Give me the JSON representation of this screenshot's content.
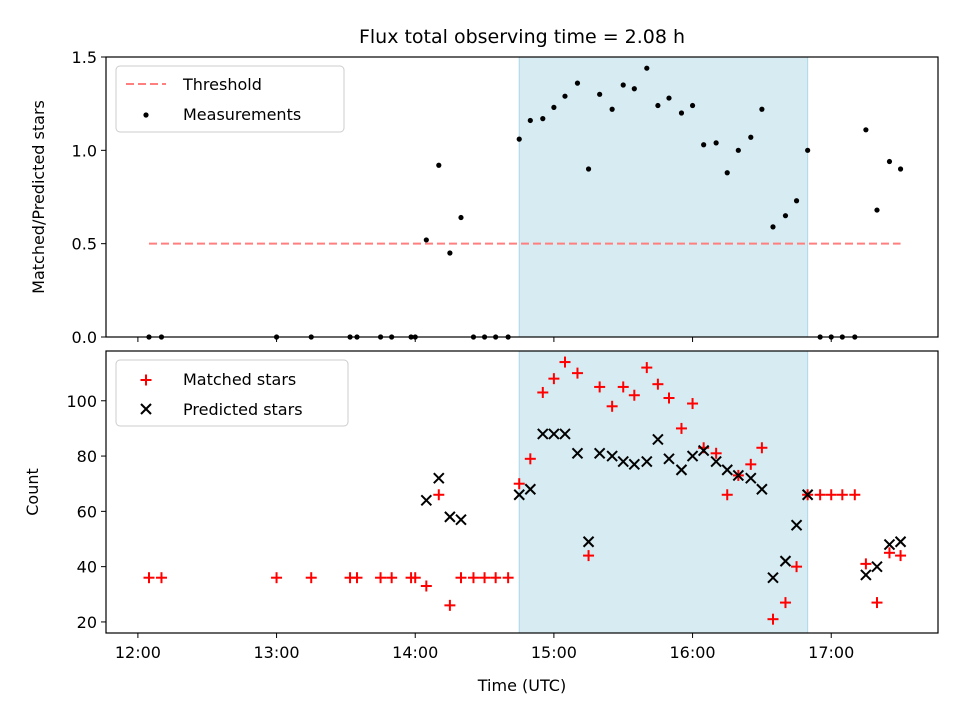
{
  "title": "Flux total observing time = 2.08 h",
  "x_axis": {
    "label": "Time (UTC)",
    "range_hours": [
      11.77,
      17.77
    ],
    "ticks": [
      {
        "value": 12,
        "label": "12:00"
      },
      {
        "value": 13,
        "label": "13:00"
      },
      {
        "value": 14,
        "label": "14:00"
      },
      {
        "value": 15,
        "label": "15:00"
      },
      {
        "value": 16,
        "label": "16:00"
      },
      {
        "value": 17,
        "label": "17:00"
      }
    ]
  },
  "shaded_window_hours": [
    14.75,
    16.83
  ],
  "colors": {
    "shade": "#add8e6",
    "threshold": "#ff7f7f",
    "measurement": "#000000",
    "matched": "#ff0000",
    "predicted": "#000000"
  },
  "chart_data": [
    {
      "type": "scatter",
      "ylabel": "Matched/Predicted stars",
      "ylim": [
        0,
        1.5
      ],
      "yticks": [
        "0.0",
        "0.5",
        "1.0",
        "1.5"
      ],
      "legend_position": "upper-left",
      "threshold": {
        "name": "Threshold",
        "value": 0.5,
        "x_range": [
          12.08,
          17.5
        ]
      },
      "series": [
        {
          "name": "Measurements",
          "x": [
            12.08,
            12.17,
            13.0,
            13.25,
            13.53,
            13.58,
            13.75,
            13.83,
            13.97,
            14.0,
            14.08,
            14.17,
            14.25,
            14.33,
            14.42,
            14.5,
            14.58,
            14.67,
            14.75,
            14.83,
            14.92,
            15.0,
            15.08,
            15.17,
            15.25,
            15.33,
            15.42,
            15.5,
            15.58,
            15.67,
            15.75,
            15.83,
            15.92,
            16.0,
            16.08,
            16.17,
            16.25,
            16.33,
            16.42,
            16.5,
            16.58,
            16.67,
            16.75,
            16.83,
            16.92,
            17.0,
            17.08,
            17.17,
            17.25,
            17.33,
            17.42,
            17.5
          ],
          "y": [
            0,
            0,
            0,
            0,
            0,
            0,
            0,
            0,
            0,
            0,
            0.52,
            0.92,
            0.45,
            0.64,
            0,
            0,
            0,
            0,
            1.06,
            1.16,
            1.17,
            1.23,
            1.29,
            1.36,
            0.9,
            1.3,
            1.22,
            1.35,
            1.33,
            1.44,
            1.24,
            1.28,
            1.2,
            1.24,
            1.03,
            1.04,
            0.88,
            1.0,
            1.07,
            1.22,
            0.59,
            0.65,
            0.73,
            1.0,
            0,
            0,
            0,
            0,
            1.11,
            0.68,
            0.94,
            0.9
          ]
        }
      ]
    },
    {
      "type": "scatter",
      "xlabel": "Time (UTC)",
      "ylabel": "Count",
      "ylim": [
        16,
        118
      ],
      "yticks": [
        "20",
        "40",
        "60",
        "80",
        "100"
      ],
      "legend_position": "upper-left",
      "series": [
        {
          "name": "Matched stars",
          "marker": "plus",
          "x": [
            12.08,
            12.17,
            13.0,
            13.25,
            13.53,
            13.58,
            13.75,
            13.83,
            13.97,
            14.0,
            14.08,
            14.17,
            14.25,
            14.33,
            14.42,
            14.5,
            14.58,
            14.67,
            14.75,
            14.83,
            14.92,
            15.0,
            15.08,
            15.17,
            15.25,
            15.33,
            15.42,
            15.5,
            15.58,
            15.67,
            15.75,
            15.83,
            15.92,
            16.0,
            16.08,
            16.17,
            16.25,
            16.33,
            16.42,
            16.5,
            16.58,
            16.67,
            16.75,
            16.83,
            16.92,
            17.0,
            17.08,
            17.17,
            17.25,
            17.33,
            17.42,
            17.5
          ],
          "y": [
            36,
            36,
            36,
            36,
            36,
            36,
            36,
            36,
            36,
            36,
            33,
            66,
            26,
            36,
            36,
            36,
            36,
            36,
            70,
            79,
            103,
            108,
            114,
            110,
            44,
            105,
            98,
            105,
            102,
            112,
            106,
            101,
            90,
            99,
            83,
            81,
            66,
            73,
            77,
            83,
            21,
            27,
            40,
            66,
            66,
            66,
            66,
            66,
            41,
            27,
            45,
            44
          ]
        },
        {
          "name": "Predicted stars",
          "marker": "x",
          "x": [
            14.08,
            14.17,
            14.25,
            14.33,
            14.75,
            14.83,
            14.92,
            15.0,
            15.08,
            15.17,
            15.25,
            15.33,
            15.42,
            15.5,
            15.58,
            15.67,
            15.75,
            15.83,
            15.92,
            16.0,
            16.08,
            16.17,
            16.25,
            16.33,
            16.42,
            16.5,
            16.58,
            16.67,
            16.75,
            16.83,
            17.25,
            17.33,
            17.42,
            17.5
          ],
          "y": [
            64,
            72,
            58,
            57,
            66,
            68,
            88,
            88,
            88,
            81,
            49,
            81,
            80,
            78,
            77,
            78,
            86,
            79,
            75,
            80,
            82,
            78,
            75,
            73,
            72,
            68,
            36,
            42,
            55,
            66,
            37,
            40,
            48,
            49
          ]
        }
      ]
    }
  ]
}
